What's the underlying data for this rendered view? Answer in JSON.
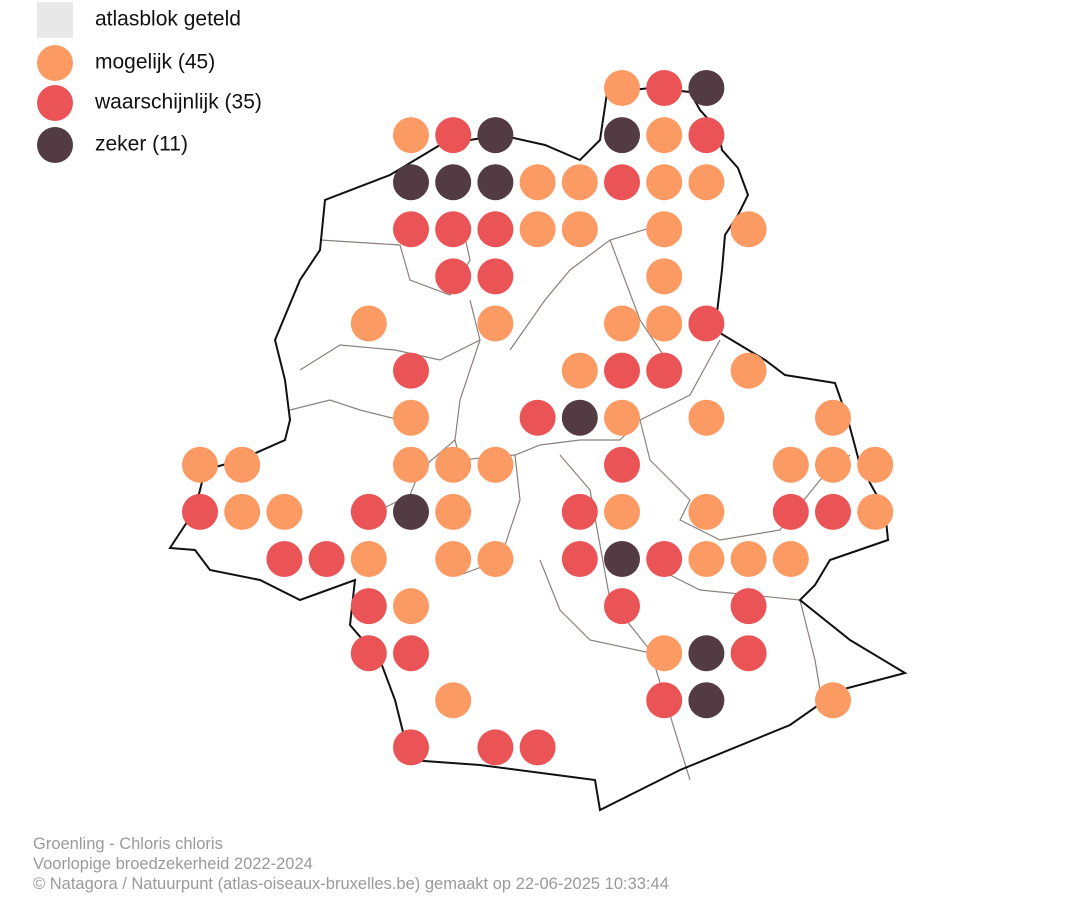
{
  "legend": {
    "items": [
      {
        "label": "atlasblok geteld",
        "color": "#e8e8e8"
      },
      {
        "label": "mogelijk (45)",
        "color": "#fc9a63"
      },
      {
        "label": "waarschijnlijk (35)",
        "color": "#ea5457"
      },
      {
        "label": "zeker (11)",
        "color": "#533b44"
      }
    ]
  },
  "footer": {
    "lines": [
      "Groenling - Chloris chloris",
      "Voorlopige broedzekerheid 2022-2024",
      "© Natagora / Natuurpunt (atlas-oiseaux-bruxelles.be) gemaakt op 22-06-2025 10:33:44"
    ]
  }
}
